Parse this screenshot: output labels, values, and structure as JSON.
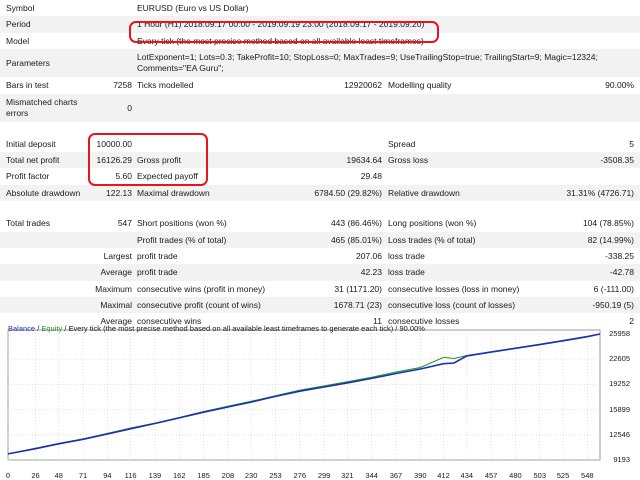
{
  "report": {
    "symbol": {
      "label": "Symbol",
      "value": "EURUSD (Euro vs US Dollar)"
    },
    "period": {
      "label": "Period",
      "value": "1 Hour (H1) 2018.09.17 00:00 - 2019.09.19 23:00 (2018.09.17 - 2019.09.20)"
    },
    "model": {
      "label": "Model",
      "value": "Every tick (the most precise method based on all available least timeframes)"
    },
    "parameters": {
      "label": "Parameters",
      "line1": "LotExponent=1; Lots=0.3; TakeProfit=10; StopLoss=0; MaxTrades=9; UseTrailingStop=true; TrailingStart=9; Magic=12324;",
      "line2": "Comments=\"EA Guru\";"
    },
    "bars": {
      "label": "Bars in test",
      "value": "7258",
      "ticks_label": "Ticks modelled",
      "ticks_value": "12920062",
      "quality_label": "Modelling quality",
      "quality_value": "90.00%"
    },
    "mismatched": {
      "label_line1": "Mismatched charts",
      "label_line2": "errors",
      "value": "0"
    },
    "initial_deposit": {
      "label": "Initial deposit",
      "value": "10000.00",
      "spread_label": "Spread",
      "spread_value": "5"
    },
    "net_profit": {
      "label": "Total net profit",
      "value": "16126.29",
      "gross_profit_label": "Gross profit",
      "gross_profit_value": "19634.64",
      "gross_loss_label": "Gross loss",
      "gross_loss_value": "-3508.35"
    },
    "profit_factor": {
      "label": "Profit factor",
      "value": "5.60",
      "payoff_label": "Expected payoff",
      "payoff_value": "29.48"
    },
    "drawdown": {
      "label": "Absolute drawdown",
      "value": "122.13",
      "max_label": "Maximal drawdown",
      "max_value": "6784.50 (29.82%)",
      "rel_label": "Relative drawdown",
      "rel_value": "31.31% (4726.71)"
    },
    "trades": {
      "label": "Total trades",
      "value": "547",
      "short_label": "Short positions (won %)",
      "short_value": "443 (86.46%)",
      "long_label": "Long positions (won %)",
      "long_value": "104 (78.85%)"
    },
    "profit_trades": {
      "label": "Profit trades (% of total)",
      "value": "465 (85.01%)",
      "loss_label": "Loss trades (% of total)",
      "loss_value": "82 (14.99%)"
    },
    "largest": {
      "label": "Largest",
      "profit_label": "profit trade",
      "profit_value": "207.06",
      "loss_label": "loss trade",
      "loss_value": "-338.25"
    },
    "average": {
      "label": "Average",
      "profit_label": "profit trade",
      "profit_value": "42.23",
      "loss_label": "loss trade",
      "loss_value": "-42.78"
    },
    "maximum": {
      "label": "Maximum",
      "wins_label": "consecutive wins (profit in money)",
      "wins_value": "31 (1171.20)",
      "losses_label": "consecutive losses (loss in money)",
      "losses_value": "6 (-111.00)"
    },
    "maximal": {
      "label": "Maximal",
      "wins_label": "consecutive profit (count of wins)",
      "wins_value": "1678.71 (23)",
      "losses_label": "consecutive loss (count of losses)",
      "losses_value": "-950.19 (5)"
    },
    "average_consec": {
      "label": "Average",
      "wins_label": "consecutive wins",
      "wins_value": "11",
      "losses_label": "consecutive losses",
      "losses_value": "2"
    }
  },
  "chart_legend": {
    "balance": "Balance",
    "separator": " / ",
    "equity": "Equity",
    "rest": " / Every tick (the most precise method based on all available least timeframes to generate each tick) / 90.00%"
  },
  "chart_data": {
    "type": "line",
    "series": [
      {
        "name": "Balance",
        "color": "#1d2fb5",
        "x": [
          0,
          26,
          48,
          71,
          94,
          116,
          139,
          162,
          185,
          208,
          230,
          253,
          276,
          299,
          321,
          344,
          367,
          390,
          412,
          422,
          434,
          457,
          480,
          503,
          525,
          548,
          560
        ],
        "y": [
          10000,
          10700,
          11350,
          11950,
          12650,
          13350,
          14050,
          14800,
          15550,
          16250,
          16900,
          17650,
          18350,
          18900,
          19450,
          20050,
          20700,
          21300,
          22000,
          22100,
          23050,
          23550,
          24050,
          24550,
          25050,
          25600,
          25958
        ]
      },
      {
        "name": "Equity",
        "color": "#1a9a1a",
        "x": [
          0,
          26,
          48,
          71,
          94,
          116,
          139,
          162,
          185,
          208,
          230,
          253,
          276,
          299,
          321,
          344,
          367,
          390,
          412,
          422,
          434,
          457,
          480,
          503,
          525,
          548,
          560
        ],
        "y": [
          10000,
          10750,
          11400,
          12000,
          12750,
          13450,
          14100,
          14850,
          15650,
          16350,
          17000,
          17750,
          18500,
          19050,
          19600,
          20200,
          20900,
          21500,
          22850,
          22700,
          23100,
          23600,
          24100,
          24600,
          25100,
          25650,
          25958
        ]
      }
    ],
    "y_ticks": [
      "25958",
      "22605",
      "19252",
      "15899",
      "12546",
      "9193"
    ],
    "x_ticks": [
      "0",
      "26",
      "48",
      "71",
      "94",
      "116",
      "139",
      "162",
      "185",
      "208",
      "230",
      "253",
      "276",
      "299",
      "321",
      "344",
      "367",
      "390",
      "412",
      "434",
      "457",
      "480",
      "503",
      "525",
      "548"
    ],
    "ylim": [
      9193,
      25958
    ],
    "xlim": [
      0,
      560
    ],
    "grid": true
  },
  "highlight_color": "#e8151e"
}
